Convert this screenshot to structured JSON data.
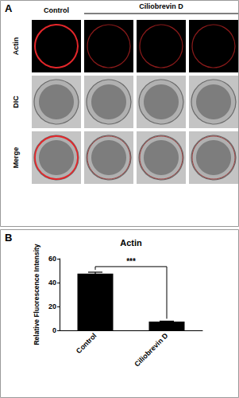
{
  "panel_a": {
    "label": "A",
    "column_groups": [
      "Control",
      "Ciliobrevin D"
    ],
    "rows": [
      "Actin",
      "DIC",
      "Merge"
    ]
  },
  "chart_data": {
    "panel_label": "B",
    "type": "bar",
    "title": "Actin",
    "y_label": "Relative Fluorescence Intensity",
    "categories": [
      "Control",
      "Ciliobrevin D"
    ],
    "values": [
      47.5,
      7.3
    ],
    "errors": [
      1.2,
      0.4
    ],
    "color": "#000000",
    "ylim": [
      0,
      60
    ],
    "yticks": [
      0,
      20,
      40,
      60
    ],
    "grid": false,
    "annotations": [
      {
        "text": "***"
      }
    ]
  }
}
